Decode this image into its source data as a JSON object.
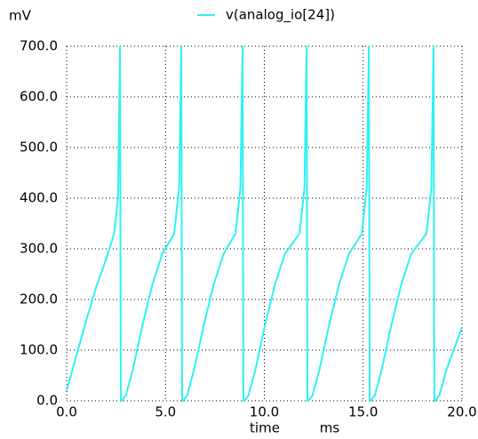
{
  "chart_data": {
    "type": "line",
    "ylabel": "mV",
    "xlabel": "time",
    "xunit": "ms",
    "grid": true,
    "legend": "top",
    "xlim": [
      0,
      20
    ],
    "xticks": [
      {
        "value": 0,
        "label": "0.0"
      },
      {
        "value": 5,
        "label": "5.0"
      },
      {
        "value": 10,
        "label": "10.0"
      },
      {
        "value": 15,
        "label": "15.0"
      },
      {
        "value": 20,
        "label": "20.0"
      }
    ],
    "ylim": [
      0,
      700
    ],
    "yticks": [
      {
        "value": 0,
        "label": "0.0"
      },
      {
        "value": 100,
        "label": "100.0"
      },
      {
        "value": 200,
        "label": "200.0"
      },
      {
        "value": 300,
        "label": "300.0"
      },
      {
        "value": 400,
        "label": "400.0"
      },
      {
        "value": 500,
        "label": "500.0"
      },
      {
        "value": 600,
        "label": "600.0"
      },
      {
        "value": 700,
        "label": "700.0"
      }
    ],
    "x": [
      0,
      0.5,
      1.0,
      1.5,
      2.0,
      2.4,
      2.6,
      2.7,
      2.74,
      2.79,
      2.99,
      3.34,
      3.84,
      4.34,
      4.84,
      5.44,
      5.69,
      5.8,
      5.84,
      5.89,
      6.09,
      6.44,
      6.94,
      7.44,
      7.94,
      8.54,
      8.79,
      8.9,
      8.94,
      8.99,
      9.19,
      9.54,
      10.04,
      10.54,
      11.04,
      11.78,
      12.03,
      12.14,
      12.18,
      12.23,
      12.43,
      12.78,
      13.28,
      13.78,
      14.28,
      14.93,
      15.18,
      15.29,
      15.33,
      15.38,
      15.58,
      15.93,
      16.43,
      16.93,
      17.43,
      18.2,
      18.45,
      18.56,
      18.6,
      18.65,
      18.85,
      19.2,
      20.0
    ],
    "series": [
      {
        "name": "v(analog_io[24])",
        "color": "#2ef2f2",
        "values": [
          20,
          90,
          160,
          225,
          280,
          330,
          400,
          700,
          0,
          0,
          10,
          60,
          150,
          230,
          290,
          330,
          420,
          700,
          0,
          0,
          10,
          60,
          150,
          230,
          290,
          330,
          420,
          700,
          0,
          0,
          10,
          60,
          150,
          230,
          290,
          330,
          420,
          700,
          0,
          0,
          10,
          60,
          150,
          230,
          290,
          330,
          420,
          700,
          0,
          0,
          10,
          60,
          150,
          230,
          290,
          330,
          420,
          700,
          0,
          0,
          10,
          60,
          145
        ]
      }
    ]
  }
}
